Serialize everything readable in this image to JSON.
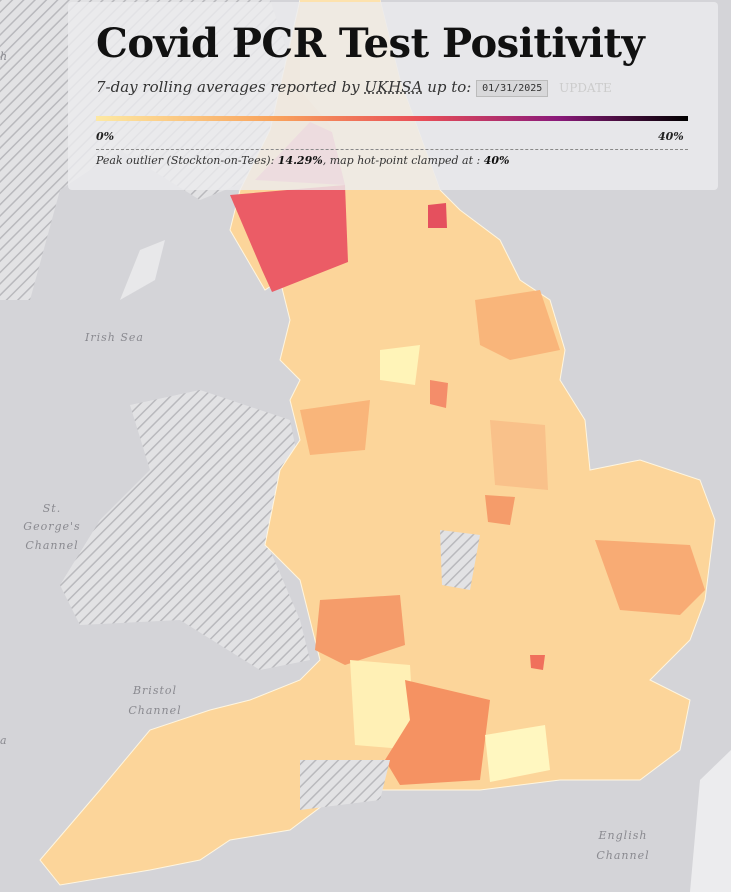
{
  "header": {
    "title": "Covid PCR Test Positivity",
    "subtitle": "7-day rolling averages reported by",
    "source_link": "UKHSA",
    "date_prefix": "up to:",
    "date_value": "01/31/2025",
    "button": "UPDATE"
  },
  "legend": {
    "min_label": "0%",
    "max_label": "40%"
  },
  "note": {
    "prefix": "Peak outlier (Stockton-on-Tees):",
    "peak": "14.29%",
    "middle": ", map hot-point clamped at :",
    "clamp": "40%"
  },
  "map_labels": {
    "irish_sea": "Irish Sea",
    "st_georges": [
      "St.",
      "George's",
      "Channel"
    ],
    "bristol": [
      "Bristol",
      "Channel"
    ],
    "english": [
      "English",
      "Channel"
    ],
    "edge_left_top": "h",
    "edge_left_bottom": "a"
  }
}
